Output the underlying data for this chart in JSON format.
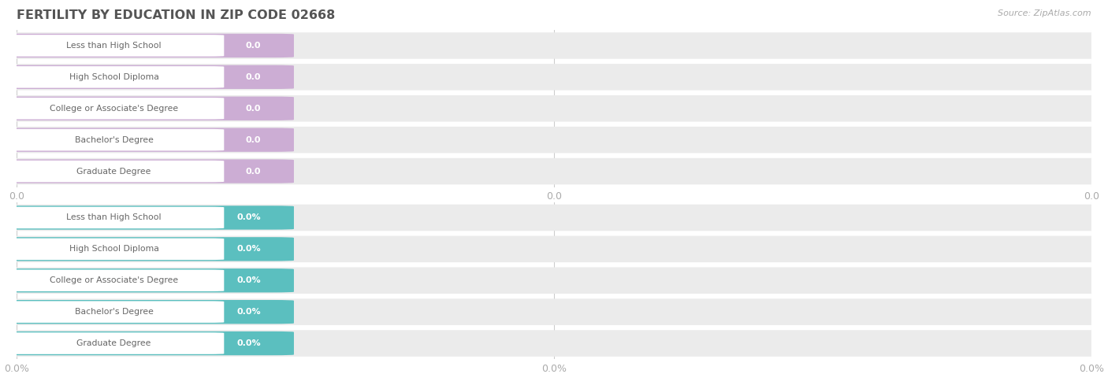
{
  "title": "FERTILITY BY EDUCATION IN ZIP CODE 02668",
  "source": "Source: ZipAtlas.com",
  "categories": [
    "Less than High School",
    "High School Diploma",
    "College or Associate's Degree",
    "Bachelor's Degree",
    "Graduate Degree"
  ],
  "values_top": [
    0.0,
    0.0,
    0.0,
    0.0,
    0.0
  ],
  "values_bottom": [
    0.0,
    0.0,
    0.0,
    0.0,
    0.0
  ],
  "top_bar_color": "#ccadd4",
  "bottom_bar_color": "#5bbfbf",
  "background_color": "#ffffff",
  "row_bg_color": "#ebebeb",
  "title_color": "#555555",
  "source_color": "#aaaaaa",
  "tick_label_color": "#aaaaaa",
  "value_text_color": "#ffffff",
  "label_text_color": "#666666"
}
